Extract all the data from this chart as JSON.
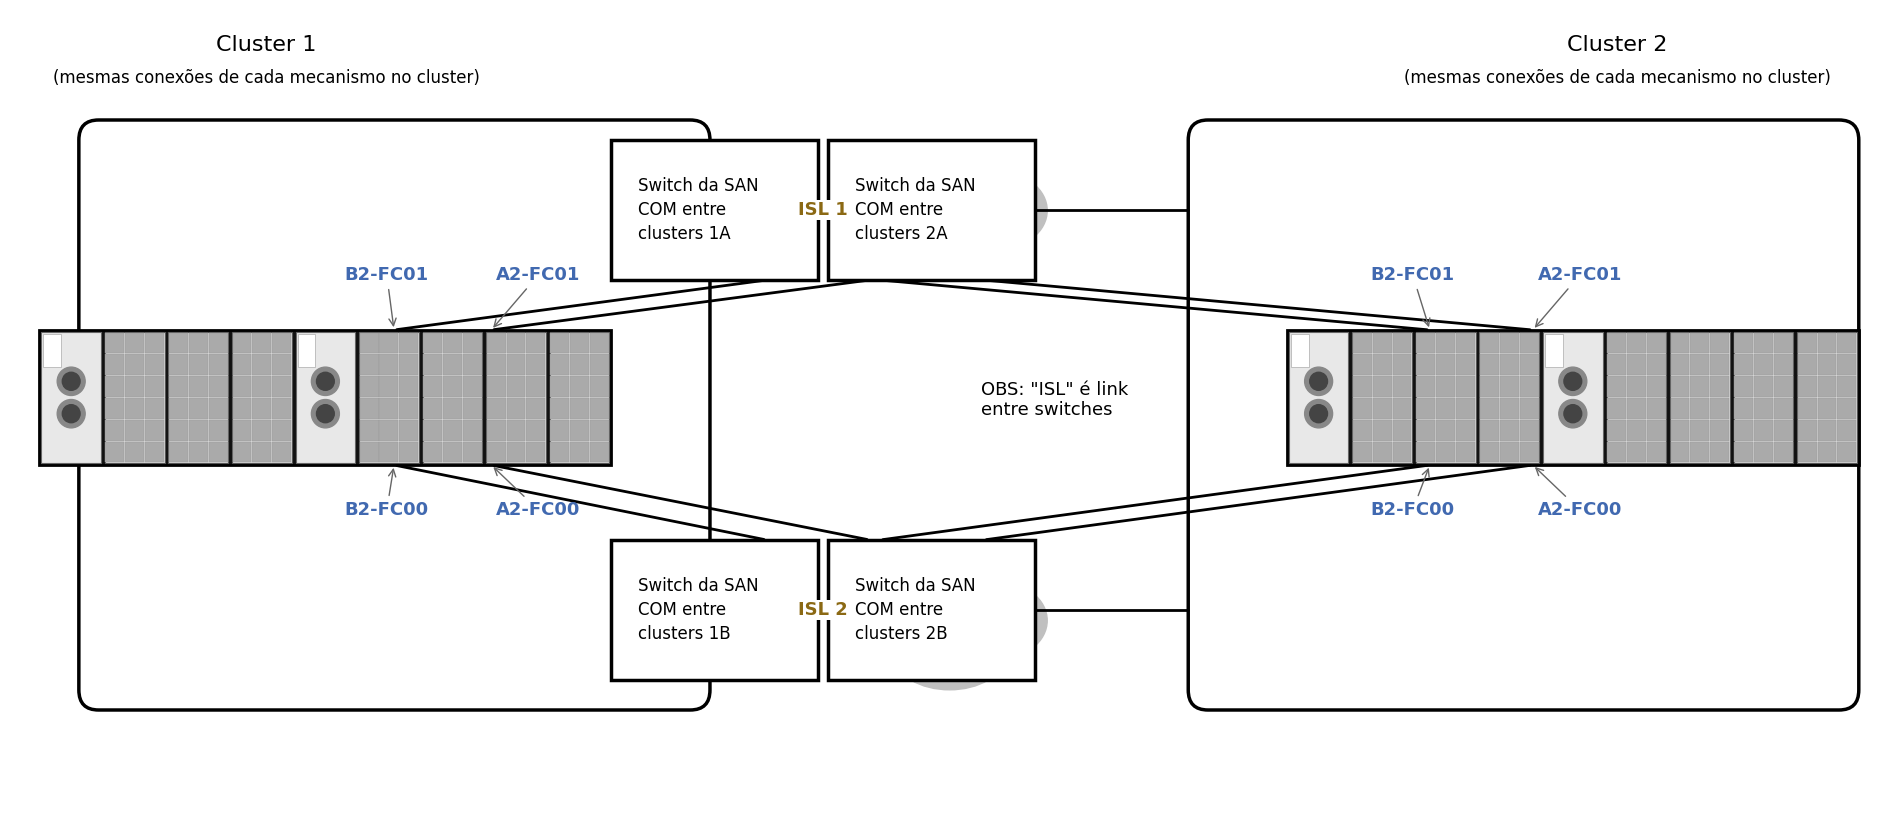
{
  "title_cluster1": "Cluster 1",
  "subtitle_cluster1": "(mesmas conexões de cada mecanismo no cluster)",
  "title_cluster2": "Cluster 2",
  "subtitle_cluster2": "(mesmas conexões de cada mecanismo no cluster)",
  "switch_1a_text": "Switch da SAN\nCOM entre\nclusters 1A",
  "switch_2a_text": "Switch da SAN\nCOM entre\nclusters 2A",
  "switch_1b_text": "Switch da SAN\nCOM entre\nclusters 1B",
  "switch_2b_text": "Switch da SAN\nCOM entre\nclusters 2B",
  "isl1_text": "ISL 1",
  "isl2_text": "ISL 2",
  "obs_text": "OBS: \"ISL\" é link\nentre switches",
  "port_color": "#4169b0",
  "bg_color": "#ffffff",
  "box_outline": "#000000"
}
